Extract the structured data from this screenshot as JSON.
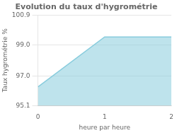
{
  "chart_data": {
    "type": "area",
    "title": "Evolution du taux d'hygrométrie",
    "xlabel": "heure par heure",
    "ylabel": "Taux hygrométrie %",
    "x": [
      0,
      1,
      2
    ],
    "values": [
      96.3,
      99.5,
      99.5
    ],
    "color": "#88ccdd",
    "xlim": [
      0,
      2
    ],
    "ylim": [
      95.1,
      100.9
    ],
    "xticks": [
      0,
      1,
      2
    ],
    "yticks": [
      95.1,
      {
        "value": 97.0,
        "label": "97.0"
      },
      {
        "value": 99.0,
        "label": "99.0"
      },
      100.9
    ],
    "grid": true
  }
}
